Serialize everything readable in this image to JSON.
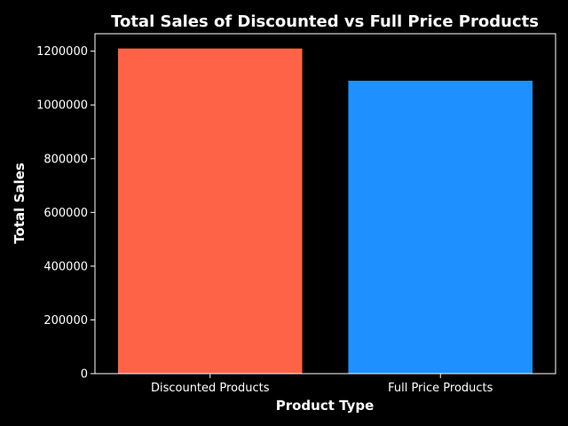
{
  "chart_data": {
    "type": "bar",
    "title": "Total Sales of Discounted vs Full Price Products",
    "xlabel": "Product Type",
    "ylabel": "Total Sales",
    "categories": [
      "Discounted Products",
      "Full Price Products"
    ],
    "values": [
      1210000,
      1090000
    ],
    "colors": [
      "#ff6347",
      "#1e90ff"
    ],
    "ylim": [
      0,
      1265000
    ],
    "yticks": [
      0,
      200000,
      400000,
      600000,
      800000,
      1000000,
      1200000
    ],
    "ytick_labels": [
      "0",
      "200000",
      "400000",
      "600000",
      "800000",
      "1000000",
      "1200000"
    ],
    "grid": false,
    "background": "#000000",
    "axis_color": "#ffffff"
  }
}
